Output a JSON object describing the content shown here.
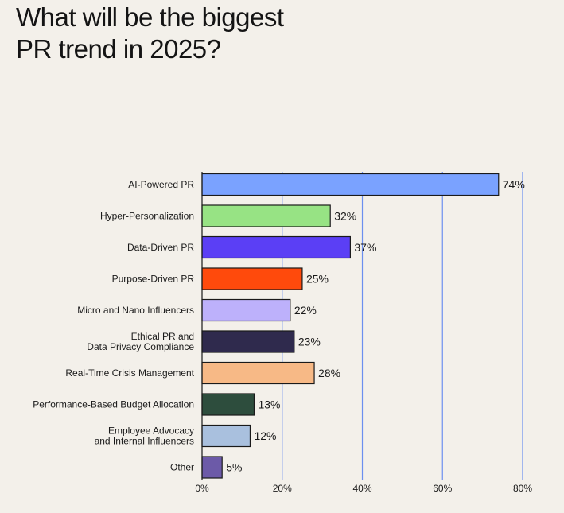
{
  "chart_data": {
    "type": "bar",
    "orientation": "horizontal",
    "title": [
      "What will be the biggest",
      "PR trend in 2025?"
    ],
    "categories": [
      [
        "AI-Powered PR"
      ],
      [
        "Hyper-Personalization"
      ],
      [
        "Data-Driven PR"
      ],
      [
        "Purpose-Driven PR"
      ],
      [
        "Micro and Nano Influencers"
      ],
      [
        "Ethical PR and",
        "Data Privacy Compliance"
      ],
      [
        "Real-Time Crisis Management"
      ],
      [
        "Performance-Based Budget Allocation"
      ],
      [
        "Employee Advocacy",
        "and Internal Influencers"
      ],
      [
        "Other"
      ]
    ],
    "values": [
      74,
      32,
      37,
      25,
      22,
      23,
      28,
      13,
      12,
      5
    ],
    "value_labels": [
      "74%",
      "32%",
      "37%",
      "25%",
      "22%",
      "23%",
      "28%",
      "13%",
      "12%",
      "5%"
    ],
    "colors": [
      "#7aa2ff",
      "#97e384",
      "#5b3ff5",
      "#ff4a0c",
      "#bdb1fb",
      "#2f2a4d",
      "#f7b986",
      "#2d4d3d",
      "#a9c0de",
      "#6c5aa8"
    ],
    "xlim": [
      0,
      80
    ],
    "xticks": [
      0,
      20,
      40,
      60,
      80
    ],
    "xtick_labels": [
      "0%",
      "20%",
      "40%",
      "60%",
      "80%"
    ],
    "grid": "vertical",
    "gridline_color": "#6b8ff0",
    "legend": "none"
  }
}
